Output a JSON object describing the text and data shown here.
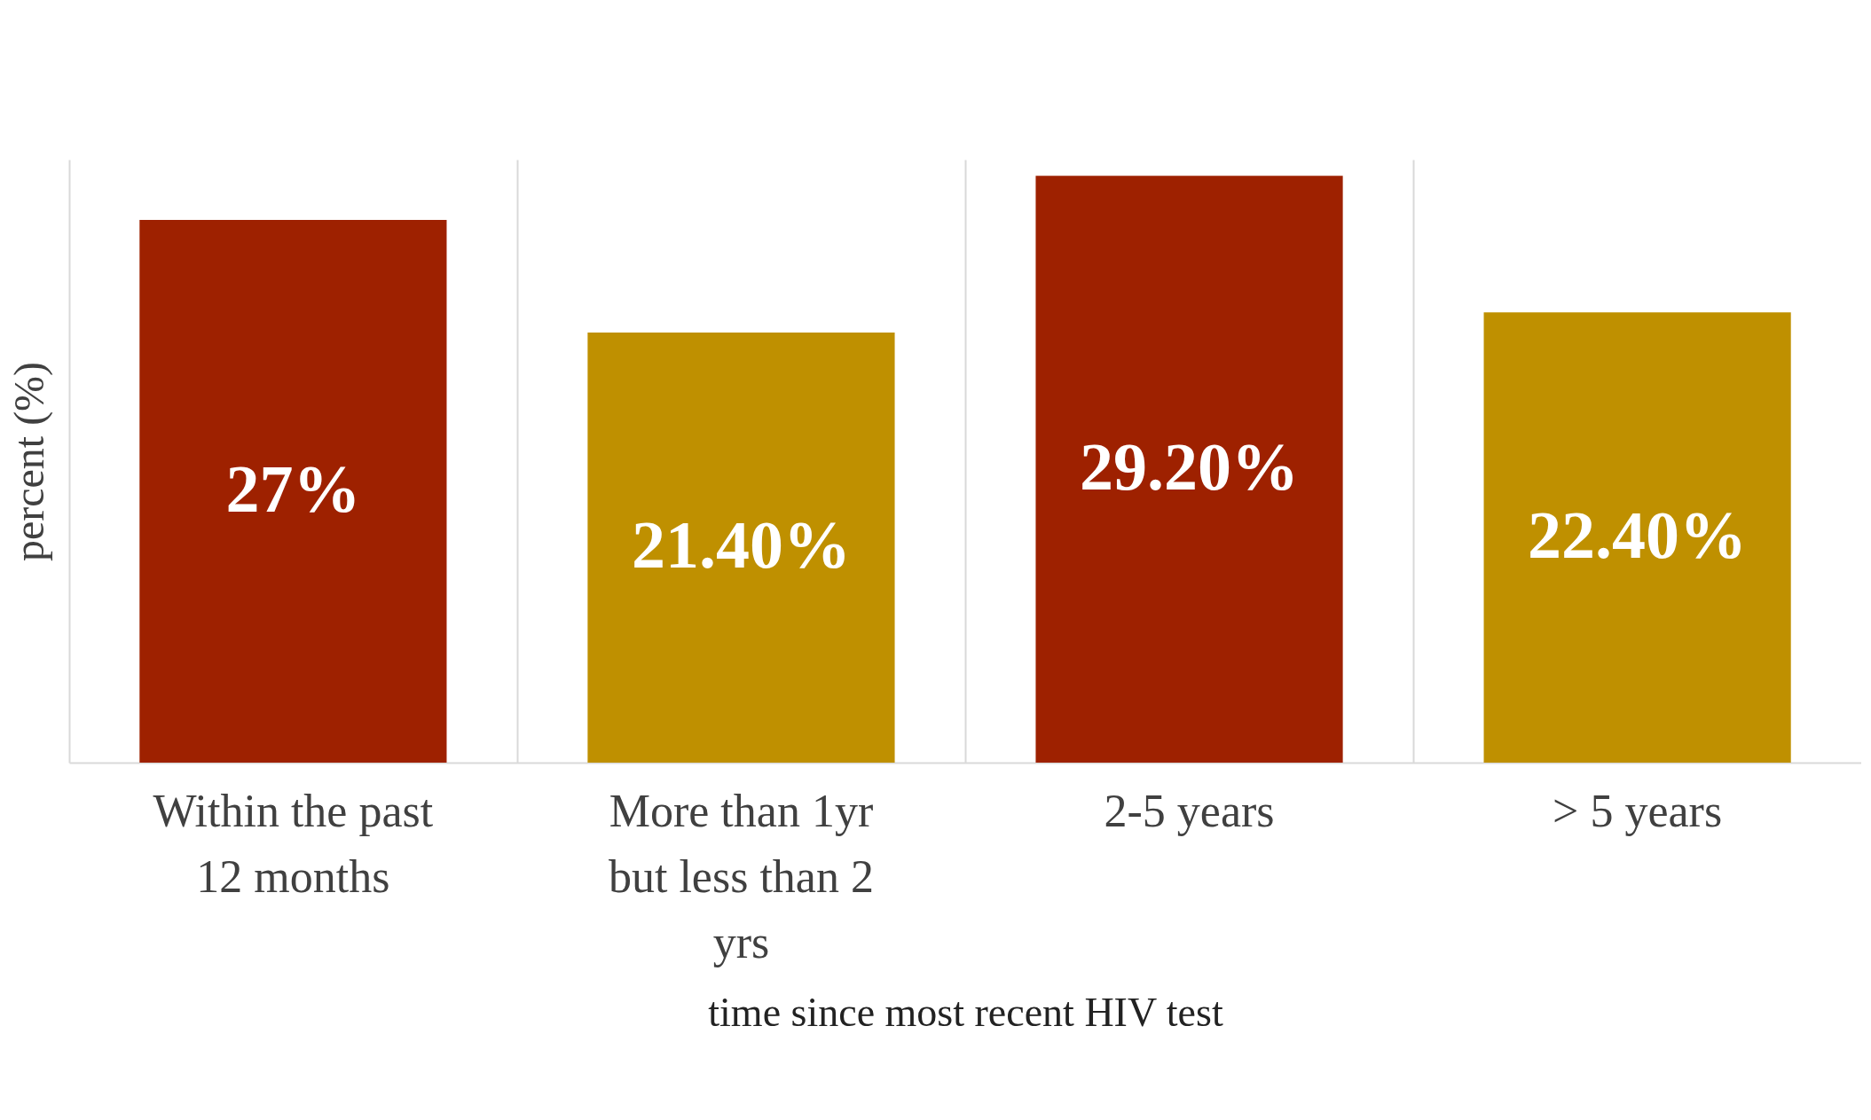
{
  "chart_data": {
    "type": "bar",
    "xlabel": "time since most recent HIV test",
    "ylabel": "percent (%)",
    "categories": [
      "Within the past 12 months",
      "More than 1yr but less than 2 yrs",
      "2-5 years",
      "> 5 years"
    ],
    "values": [
      27,
      21.4,
      29.2,
      22.4
    ],
    "value_labels": [
      "27%",
      "21.40%",
      "29.20%",
      "22.40%"
    ],
    "colors": [
      "#9e2100",
      "#bf9000",
      "#9e2100",
      "#bf9000"
    ],
    "grid": "x",
    "tick_labels": "x"
  }
}
